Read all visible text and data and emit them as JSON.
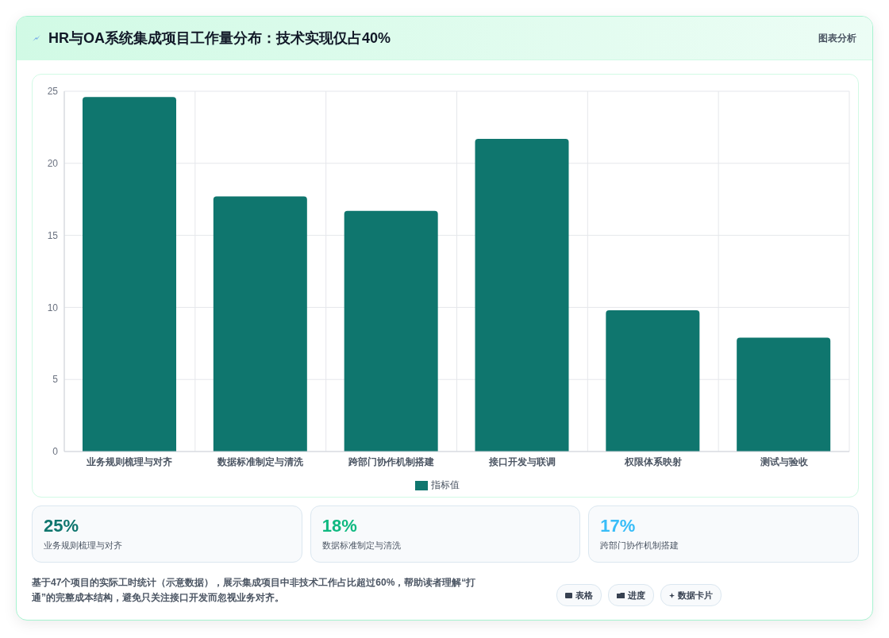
{
  "chart_data": {
    "type": "bar",
    "title": "HR与OA系统集成项目工作量分布：技术实现仅占40%",
    "categories": [
      "业务规则梳理与对齐",
      "数据标准制定与清洗",
      "跨部门协作机制搭建",
      "接口开发与联调",
      "权限体系映射",
      "测试与验收"
    ],
    "series": [
      {
        "name": "指标值",
        "color": "#0f766e",
        "values": [
          24.6,
          17.7,
          16.7,
          21.7,
          9.8,
          7.9
        ]
      }
    ],
    "ylim": [
      0,
      25
    ],
    "yticks": [
      0,
      5,
      10,
      15,
      20,
      25
    ],
    "grid": true,
    "legend": "bottom",
    "annotations": [
      "图表分析",
      "25%",
      "业务规则梳理与对齐",
      "18%",
      "数据标准制定与清洗",
      "17%",
      "跨部门协作机制搭建",
      "基于47个项目的实际工时统计（示意数据），展示集成项目中非技术工作占比超过60%，帮助读者理解“打通”的完整成本结构，避免只关注接口开发而忽视业务对齐。",
      "表格",
      "进度",
      "数据卡片"
    ]
  }
}
